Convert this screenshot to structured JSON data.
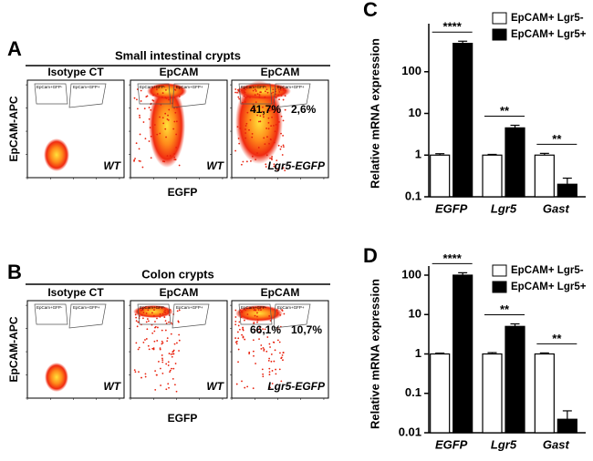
{
  "panels": [
    {
      "letter": "A",
      "title": "Small intestinal crypts",
      "y_label": "EpCAM-APC",
      "x_label": "EGFP",
      "gate_names": [
        "EpCam+GFP-",
        "EpCam+GFP+"
      ],
      "plots": [
        {
          "header": "Isotype CT",
          "genotype": "WT"
        },
        {
          "header": "EpCAM",
          "genotype": "WT"
        },
        {
          "header": "EpCAM",
          "genotype": "Lgr5-EGFP",
          "gates": [
            "41,7%",
            "2,6%"
          ]
        }
      ]
    },
    {
      "letter": "B",
      "title": "Colon crypts",
      "y_label": "EpCAM-APC",
      "x_label": "EGFP",
      "gate_names": [
        "EpCam+GFP-",
        "EpCam+GFP+"
      ],
      "plots": [
        {
          "header": "Isotype CT",
          "genotype": "WT"
        },
        {
          "header": "EpCAM",
          "genotype": "WT"
        },
        {
          "header": "EpCAM",
          "genotype": "Lgr5-EGFP",
          "gates": [
            "66,1%",
            "10,7%"
          ]
        }
      ]
    }
  ],
  "chart_data": [
    {
      "type": "bar",
      "letter": "C",
      "y_label": "Relative mRNA expression",
      "log_scale": true,
      "categories": [
        "EGFP",
        "Lgr5",
        "Gast"
      ],
      "series": [
        {
          "name": "EpCAM+ Lgr5-",
          "color": "#ffffff",
          "values": [
            1,
            1,
            1
          ],
          "errors": [
            0.08,
            0.04,
            0.1
          ]
        },
        {
          "name": "EpCAM+ Lgr5+",
          "color": "#000000",
          "values": [
            480,
            4.5,
            0.2
          ],
          "errors": [
            60,
            0.7,
            0.08
          ]
        }
      ],
      "annotations": [
        "****",
        "**",
        "**"
      ],
      "ylim": [
        0.1,
        1000
      ],
      "yticks": [
        0.1,
        1,
        10,
        100
      ],
      "legend": "top-right"
    },
    {
      "type": "bar",
      "letter": "D",
      "y_label": "Relative mRNA expression",
      "log_scale": true,
      "categories": [
        "EGFP",
        "Lgr5",
        "Gast"
      ],
      "series": [
        {
          "name": "EpCAM+ Lgr5-",
          "color": "#ffffff",
          "values": [
            1,
            1,
            1
          ],
          "errors": [
            0.05,
            0.08,
            0.06
          ]
        },
        {
          "name": "EpCAM+ Lgr5+",
          "color": "#000000",
          "values": [
            100,
            5,
            0.022
          ],
          "errors": [
            15,
            0.8,
            0.014
          ]
        }
      ],
      "annotations": [
        "****",
        "**",
        "**"
      ],
      "ylim": [
        0.01,
        100
      ],
      "yticks": [
        0.01,
        0.1,
        1,
        10,
        100
      ],
      "legend": "top-right"
    }
  ]
}
